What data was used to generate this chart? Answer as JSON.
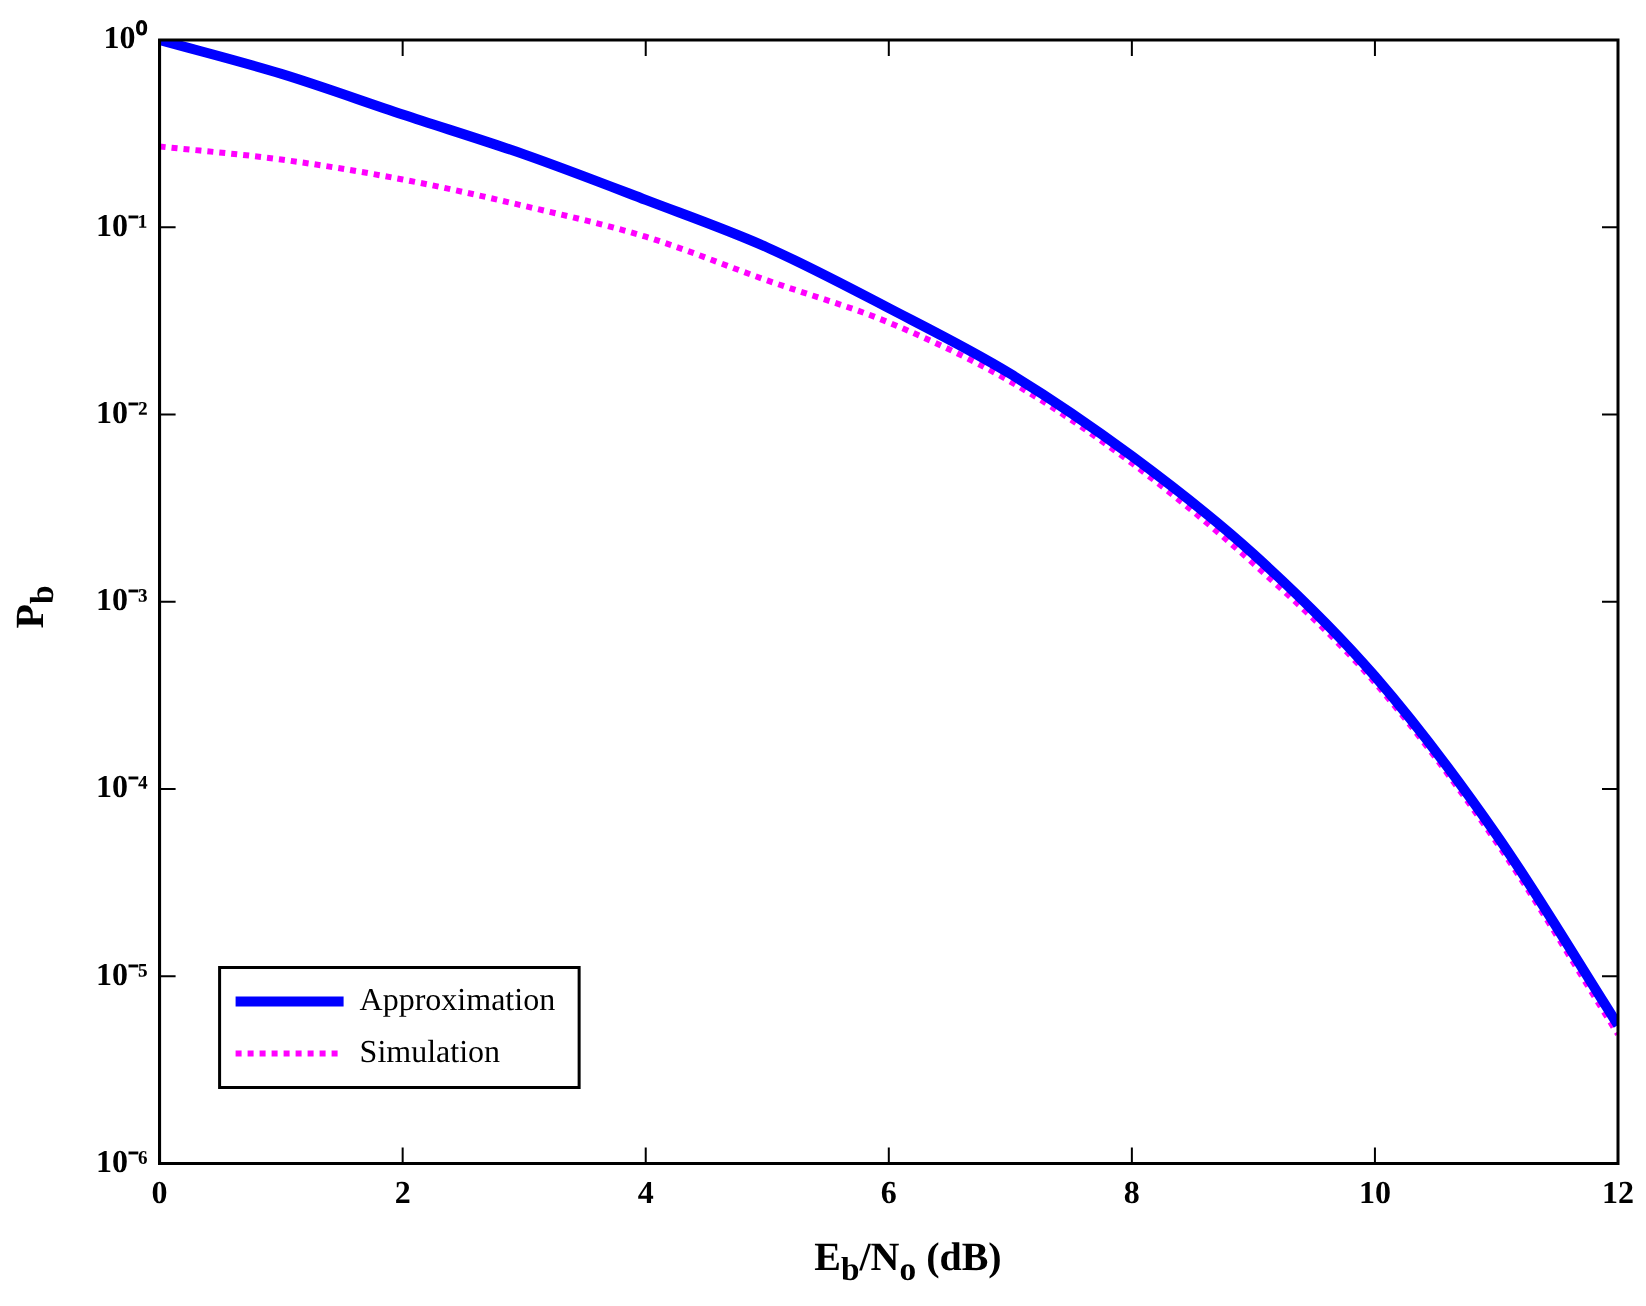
{
  "chart_data": {
    "type": "line",
    "xlabel": "E$_{b}$/N$_{o}$ (dB)",
    "ylabel": "P$_{b}$",
    "log": "y",
    "marker": "none",
    "legend": "bottom left",
    "grid": false,
    "x": [
      0,
      1,
      2,
      3,
      4,
      5,
      6,
      7,
      8,
      9,
      10,
      11,
      12
    ],
    "xlim": [
      0,
      12
    ],
    "xticks": [
      0,
      2,
      4,
      6,
      8,
      10,
      12
    ],
    "ylim": [
      1e-06,
      1
    ],
    "yticks": [
      {
        "value": 1e-06,
        "label": "10⁻⁶"
      },
      {
        "value": 1e-05,
        "label": "10⁻⁵"
      },
      {
        "value": 0.0001,
        "label": "10⁻⁴"
      },
      {
        "value": 0.001,
        "label": "10⁻³"
      },
      {
        "value": 0.01,
        "label": "10⁻²"
      },
      {
        "value": 0.1,
        "label": "10⁻¹"
      },
      {
        "value": 1,
        "label": "10⁰"
      }
    ],
    "series": [
      {
        "name": "Approximation",
        "color": "#0000ff",
        "line_style": "solid",
        "values": [
          1,
          0.66,
          0.4,
          0.245,
          0.14,
          0.078,
          0.037,
          0.0165,
          0.006,
          0.0018,
          0.0004,
          5.7e-05,
          5.5e-06
        ]
      },
      {
        "name": "Simulation",
        "color": "#ff00ff",
        "line_style": "dotted",
        "values": [
          0.27,
          0.23,
          0.18,
          0.13,
          0.089,
          0.052,
          0.031,
          0.015,
          0.0055,
          0.0016,
          0.00037,
          5.2e-05,
          4.9e-06
        ]
      }
    ]
  }
}
